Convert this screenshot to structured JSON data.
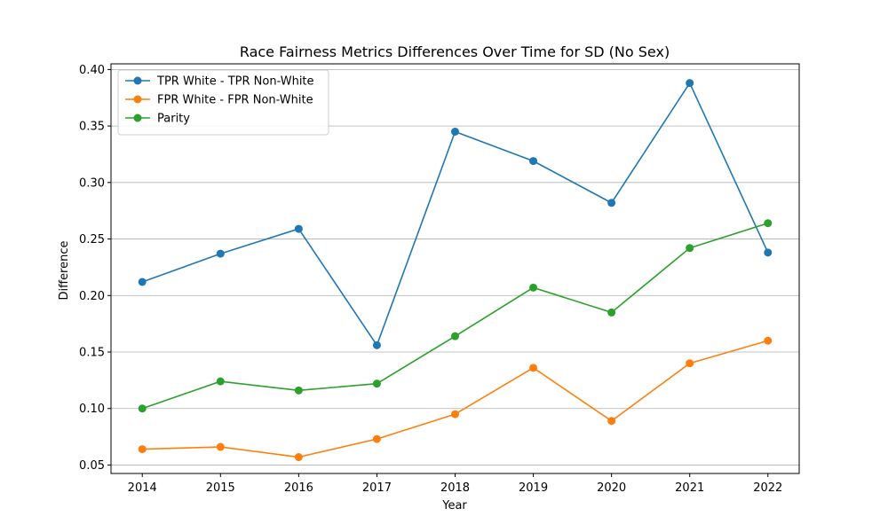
{
  "chart_data": {
    "type": "line",
    "title": "Race Fairness Metrics Differences Over Time for SD (No Sex)",
    "xlabel": "Year",
    "ylabel": "Difference",
    "x": [
      2014,
      2015,
      2016,
      2017,
      2018,
      2019,
      2020,
      2021,
      2022
    ],
    "ylim": [
      0.0425,
      0.405
    ],
    "yticks": [
      0.05,
      0.1,
      0.15,
      0.2,
      0.25,
      0.3,
      0.35,
      0.4
    ],
    "ytick_labels": [
      "0.05",
      "0.10",
      "0.15",
      "0.20",
      "0.25",
      "0.30",
      "0.35",
      "0.40"
    ],
    "grid": "horizontal",
    "legend_position": "top-left",
    "series": [
      {
        "name": "TPR White - TPR Non-White",
        "color": "#1f77b4",
        "values": [
          0.212,
          0.237,
          0.259,
          0.156,
          0.345,
          0.319,
          0.282,
          0.388,
          0.238
        ]
      },
      {
        "name": "FPR White - FPR Non-White",
        "color": "#ff7f0e",
        "values": [
          0.064,
          0.066,
          0.057,
          0.073,
          0.095,
          0.136,
          0.089,
          0.14,
          0.16
        ]
      },
      {
        "name": "Parity",
        "color": "#2ca02c",
        "values": [
          0.1,
          0.124,
          0.116,
          0.122,
          0.164,
          0.207,
          0.185,
          0.242,
          0.264
        ]
      }
    ]
  }
}
